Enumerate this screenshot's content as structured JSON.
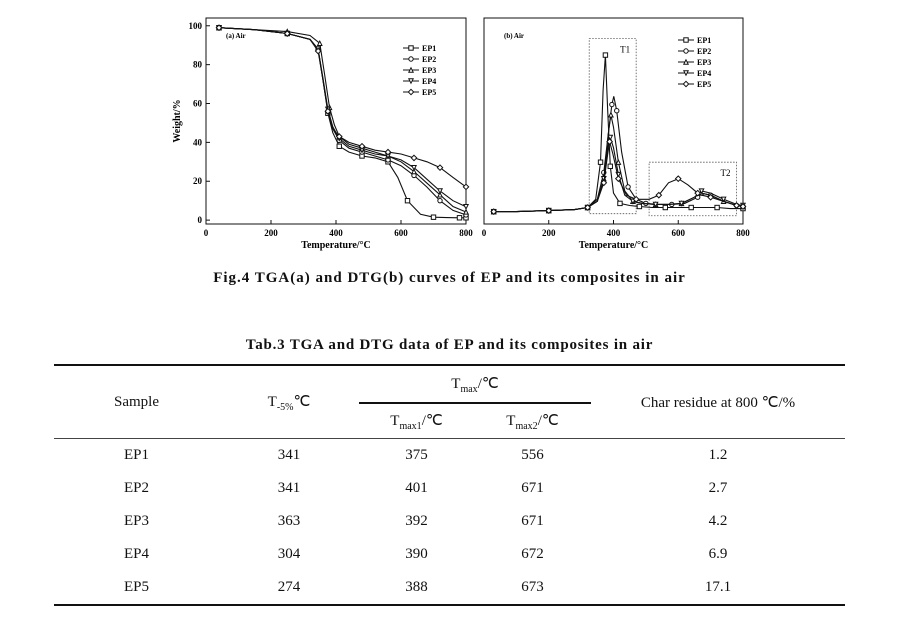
{
  "figure": {
    "caption": "Fig.4 TGA(a) and DTG(b) curves of EP and its composites in air"
  },
  "chart_data": [
    {
      "type": "line",
      "panel_label": "(a) Air",
      "xlabel": "Temperature/°C",
      "ylabel": "Weight/%",
      "xlim": [
        0,
        800
      ],
      "ylim": [
        -2,
        104
      ],
      "x_ticks": [
        "0",
        "200",
        "400",
        "600",
        "800"
      ],
      "y_ticks": [
        "0",
        "20",
        "40",
        "60",
        "80",
        "100"
      ],
      "legend_position": "top-right",
      "series": [
        {
          "name": "EP1",
          "marker": "square",
          "x": [
            40,
            150,
            250,
            320,
            345,
            360,
            375,
            390,
            410,
            440,
            480,
            520,
            560,
            590,
            620,
            660,
            700,
            740,
            780,
            800
          ],
          "y": [
            99,
            98,
            96,
            93,
            88,
            72,
            55,
            45,
            38,
            35,
            33,
            32,
            30,
            22,
            10,
            3,
            1.5,
            1.3,
            1.2,
            1.2
          ]
        },
        {
          "name": "EP2",
          "marker": "circle",
          "x": [
            40,
            150,
            250,
            320,
            345,
            360,
            375,
            390,
            410,
            440,
            480,
            520,
            560,
            600,
            640,
            680,
            720,
            760,
            800
          ],
          "y": [
            99,
            98,
            96,
            93,
            88,
            72,
            56,
            47,
            41,
            37,
            35,
            33,
            31,
            28,
            23,
            17,
            10,
            5,
            2.7
          ]
        },
        {
          "name": "EP3",
          "marker": "triangle-up",
          "x": [
            40,
            150,
            250,
            320,
            350,
            365,
            380,
            395,
            410,
            440,
            480,
            520,
            560,
            600,
            640,
            680,
            720,
            760,
            800
          ],
          "y": [
            99,
            98,
            97,
            95,
            91,
            75,
            58,
            49,
            43,
            39,
            37,
            35,
            33,
            30,
            25,
            19,
            13,
            7,
            4.2
          ]
        },
        {
          "name": "EP4",
          "marker": "triangle-down",
          "x": [
            40,
            150,
            250,
            320,
            345,
            360,
            375,
            390,
            410,
            440,
            480,
            520,
            560,
            600,
            640,
            680,
            720,
            760,
            800
          ],
          "y": [
            99,
            98,
            96,
            93,
            88,
            73,
            57,
            48,
            42,
            38,
            36,
            34,
            33,
            31,
            27,
            21,
            15,
            10,
            6.9
          ]
        },
        {
          "name": "EP5",
          "marker": "diamond",
          "x": [
            40,
            150,
            250,
            320,
            345,
            360,
            375,
            390,
            410,
            440,
            480,
            520,
            560,
            600,
            640,
            680,
            720,
            760,
            800
          ],
          "y": [
            99,
            98,
            96,
            93,
            87,
            72,
            56,
            47,
            43,
            40,
            38,
            36,
            35,
            34,
            32,
            30,
            27,
            22,
            17.1
          ]
        }
      ]
    },
    {
      "type": "line",
      "panel_label": "(b) Air",
      "xlabel": "Temperature/°C",
      "ylabel": "",
      "xlim": [
        0,
        800
      ],
      "ylim": [
        0,
        100
      ],
      "x_ticks": [
        "0",
        "200",
        "400",
        "600",
        "800"
      ],
      "legend_position": "top-right",
      "annotations": [
        "T1",
        "T2"
      ],
      "boxes": [
        {
          "label": "T1",
          "x": [
            325,
            470
          ],
          "y": [
            5,
            90
          ]
        },
        {
          "label": "T2",
          "x": [
            510,
            780
          ],
          "y": [
            4,
            30
          ]
        }
      ],
      "series": [
        {
          "name": "EP1",
          "marker": "square",
          "x": [
            30,
            100,
            200,
            280,
            320,
            345,
            360,
            368,
            375,
            382,
            390,
            400,
            420,
            450,
            480,
            520,
            560,
            600,
            640,
            680,
            720,
            760,
            800
          ],
          "y": [
            6,
            6,
            6.5,
            7,
            8,
            12,
            30,
            65,
            82,
            55,
            28,
            15,
            10,
            9,
            8.5,
            8,
            8,
            8,
            8,
            8,
            8,
            7.5,
            7.5
          ]
        },
        {
          "name": "EP2",
          "marker": "circle",
          "x": [
            30,
            100,
            200,
            280,
            320,
            350,
            370,
            385,
            395,
            401,
            410,
            425,
            445,
            470,
            500,
            540,
            580,
            620,
            660,
            671,
            700,
            740,
            780,
            800
          ],
          "y": [
            6,
            6,
            6.5,
            7,
            8,
            12,
            25,
            45,
            58,
            62,
            55,
            35,
            18,
            12,
            10,
            9.5,
            9.5,
            10,
            13,
            15,
            14,
            11,
            9,
            8.5
          ]
        },
        {
          "name": "EP3",
          "marker": "triangle-up",
          "x": [
            30,
            100,
            200,
            280,
            320,
            350,
            370,
            385,
            392,
            400,
            415,
            435,
            460,
            490,
            530,
            570,
            610,
            650,
            671,
            700,
            740,
            780,
            800
          ],
          "y": [
            6,
            6,
            6.5,
            7,
            8,
            11,
            22,
            45,
            53,
            47,
            30,
            16,
            11,
            10,
            9.5,
            9.5,
            10,
            13,
            15,
            14,
            11,
            9,
            8.5
          ]
        },
        {
          "name": "EP4",
          "marker": "triangle-down",
          "x": [
            30,
            100,
            200,
            280,
            320,
            350,
            370,
            383,
            390,
            400,
            415,
            435,
            460,
            490,
            530,
            570,
            610,
            650,
            672,
            700,
            740,
            780,
            800
          ],
          "y": [
            6,
            6,
            6.5,
            7,
            8,
            11,
            22,
            38,
            42,
            37,
            24,
            14,
            11,
            10,
            9.5,
            9.5,
            10,
            13,
            16,
            15,
            12,
            9.5,
            9
          ]
        },
        {
          "name": "EP5",
          "marker": "diamond",
          "x": [
            30,
            100,
            200,
            280,
            320,
            350,
            370,
            382,
            388,
            398,
            415,
            440,
            470,
            510,
            540,
            570,
            600,
            630,
            660,
            673,
            700,
            740,
            780,
            800
          ],
          "y": [
            6,
            6,
            6.5,
            7,
            8,
            11,
            20,
            34,
            40,
            34,
            22,
            14,
            12,
            12,
            14,
            20,
            22,
            19,
            15,
            14,
            13,
            11,
            9,
            8.5
          ]
        }
      ]
    }
  ],
  "table": {
    "caption": "Tab.3 TGA and DTG data of EP and its composites in air",
    "headers": {
      "sample": "Sample",
      "t5_main": "T",
      "t5_sub": "-5%",
      "t5_unit": "℃",
      "tmax_main": "T",
      "tmax_sub": "max",
      "tmax_unit": "/℃",
      "tmax1_main": "T",
      "tmax1_sub": "max1",
      "tmax1_unit": "/℃",
      "tmax2_main": "T",
      "tmax2_sub": "max2",
      "tmax2_unit": "/℃",
      "char": "Char residue at 800 ℃/%"
    },
    "rows": [
      {
        "sample": "EP1",
        "t5": "341",
        "tmax1": "375",
        "tmax2": "556",
        "char": "1.2"
      },
      {
        "sample": "EP2",
        "t5": "341",
        "tmax1": "401",
        "tmax2": "671",
        "char": "2.7"
      },
      {
        "sample": "EP3",
        "t5": "363",
        "tmax1": "392",
        "tmax2": "671",
        "char": "4.2"
      },
      {
        "sample": "EP4",
        "t5": "304",
        "tmax1": "390",
        "tmax2": "672",
        "char": "6.9"
      },
      {
        "sample": "EP5",
        "t5": "274",
        "tmax1": "388",
        "tmax2": "673",
        "char": "17.1"
      }
    ]
  }
}
